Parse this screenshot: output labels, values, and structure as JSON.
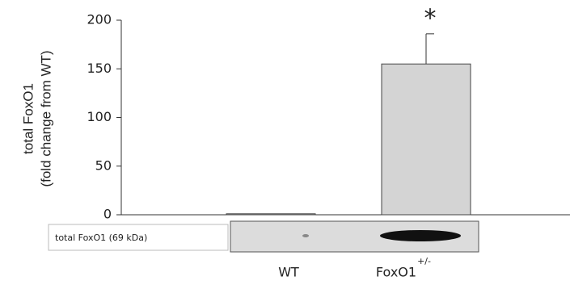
{
  "chart_data": {
    "type": "bar",
    "y_label_lines": [
      "total FoxO1",
      "(fold change from WT)"
    ],
    "categories": [
      "WT",
      "FoxO1"
    ],
    "category_superscripts": [
      null,
      "+/-"
    ],
    "values": [
      1,
      155
    ],
    "errors": [
      0,
      31
    ],
    "color": "#d4d4d4",
    "annotations": [
      null,
      "*"
    ],
    "blot_label": "total FoxO1 (69 kDa)",
    "ylim": [
      0,
      200
    ],
    "yticks": [
      0,
      50,
      100,
      150,
      200
    ]
  }
}
